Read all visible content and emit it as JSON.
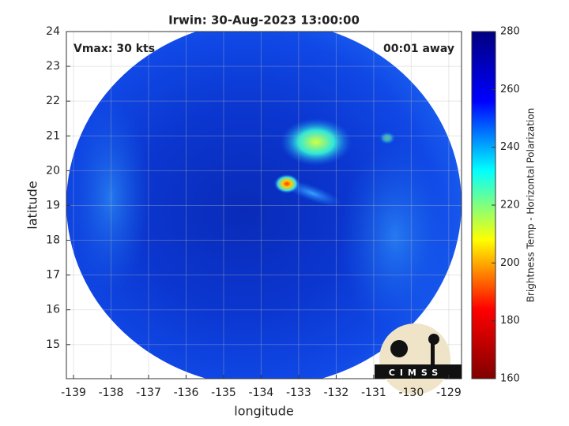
{
  "chart_data": {
    "type": "image",
    "title": "Irwin: 30-Aug-2023 13:00:00",
    "xlabel": "longitude",
    "ylabel": "latitude",
    "xlim": [
      -139.19,
      -128.66
    ],
    "ylim": [
      14.02,
      24
    ],
    "xticks": [
      -139,
      -138,
      -137,
      -136,
      -135,
      -134,
      -133,
      -132,
      -131,
      -130,
      -129
    ],
    "yticks": [
      15,
      16,
      17,
      18,
      19,
      20,
      21,
      22,
      23,
      24
    ],
    "grid": true,
    "annotations": [
      "Vmax: 30 kts",
      "00:01 away"
    ],
    "logo_text": "CIMSS",
    "colorbar": {
      "label": "Brightness Temp - Horizontal Polarization",
      "lim": [
        160,
        280
      ],
      "ticks": [
        160,
        180,
        200,
        220,
        240,
        260,
        280
      ],
      "colormap": [
        "#800000",
        "#ff0000",
        "#ffff00",
        "#00ffff",
        "#0000ff",
        "#000080"
      ]
    }
  }
}
